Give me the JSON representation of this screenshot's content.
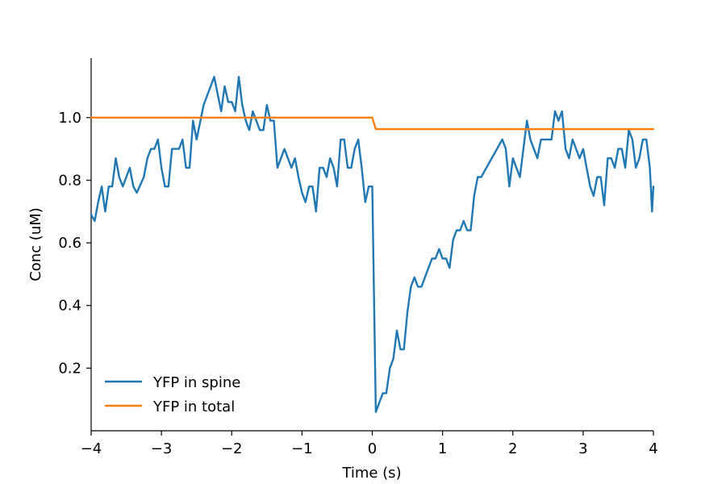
{
  "chart_data": {
    "type": "line",
    "xlabel": "Time (s)",
    "ylabel": "Conc (uM)",
    "xlim": [
      -4,
      4
    ],
    "ylim": [
      0.0,
      1.19
    ],
    "x_ticks": [
      -4,
      -3,
      -2,
      -1,
      0,
      1,
      2,
      3,
      4
    ],
    "x_tick_labels": [
      "−4",
      "−3",
      "−2",
      "−1",
      "0",
      "1",
      "2",
      "3",
      "4"
    ],
    "y_ticks": [
      0.2,
      0.4,
      0.6,
      0.8,
      1.0
    ],
    "y_tick_labels": [
      "0.2",
      "0.4",
      "0.6",
      "0.8",
      "1.0"
    ],
    "grid": false,
    "legend_position": "bottom-left",
    "series": [
      {
        "name": "YFP in spine",
        "color": "#1f77b4",
        "points": [
          [
            -4.0,
            0.69
          ],
          [
            -3.95,
            0.67
          ],
          [
            -3.9,
            0.73
          ],
          [
            -3.85,
            0.78
          ],
          [
            -3.8,
            0.7
          ],
          [
            -3.75,
            0.78
          ],
          [
            -3.7,
            0.78
          ],
          [
            -3.65,
            0.87
          ],
          [
            -3.6,
            0.81
          ],
          [
            -3.55,
            0.78
          ],
          [
            -3.45,
            0.84
          ],
          [
            -3.4,
            0.78
          ],
          [
            -3.35,
            0.76
          ],
          [
            -3.25,
            0.81
          ],
          [
            -3.2,
            0.87
          ],
          [
            -3.15,
            0.9
          ],
          [
            -3.1,
            0.9
          ],
          [
            -3.05,
            0.93
          ],
          [
            -3.0,
            0.84
          ],
          [
            -2.95,
            0.78
          ],
          [
            -2.9,
            0.78
          ],
          [
            -2.85,
            0.9
          ],
          [
            -2.75,
            0.9
          ],
          [
            -2.7,
            0.93
          ],
          [
            -2.65,
            0.84
          ],
          [
            -2.6,
            0.84
          ],
          [
            -2.55,
            0.99
          ],
          [
            -2.5,
            0.93
          ],
          [
            -2.4,
            1.04
          ],
          [
            -2.25,
            1.13
          ],
          [
            -2.15,
            1.02
          ],
          [
            -2.1,
            1.1
          ],
          [
            -2.05,
            1.05
          ],
          [
            -2.0,
            1.05
          ],
          [
            -1.95,
            1.02
          ],
          [
            -1.9,
            1.13
          ],
          [
            -1.85,
            1.04
          ],
          [
            -1.8,
            0.99
          ],
          [
            -1.75,
            0.96
          ],
          [
            -1.7,
            1.02
          ],
          [
            -1.6,
            0.96
          ],
          [
            -1.55,
            0.96
          ],
          [
            -1.5,
            1.04
          ],
          [
            -1.45,
            0.99
          ],
          [
            -1.4,
            0.99
          ],
          [
            -1.35,
            0.84
          ],
          [
            -1.25,
            0.9
          ],
          [
            -1.15,
            0.84
          ],
          [
            -1.1,
            0.87
          ],
          [
            -1.05,
            0.81
          ],
          [
            -1.0,
            0.76
          ],
          [
            -0.95,
            0.73
          ],
          [
            -0.9,
            0.78
          ],
          [
            -0.85,
            0.78
          ],
          [
            -0.8,
            0.7
          ],
          [
            -0.75,
            0.84
          ],
          [
            -0.7,
            0.84
          ],
          [
            -0.65,
            0.81
          ],
          [
            -0.6,
            0.87
          ],
          [
            -0.55,
            0.84
          ],
          [
            -0.5,
            0.78
          ],
          [
            -0.45,
            0.93
          ],
          [
            -0.4,
            0.93
          ],
          [
            -0.35,
            0.84
          ],
          [
            -0.3,
            0.84
          ],
          [
            -0.25,
            0.9
          ],
          [
            -0.2,
            0.93
          ],
          [
            -0.15,
            0.84
          ],
          [
            -0.1,
            0.73
          ],
          [
            -0.05,
            0.78
          ],
          [
            0.0,
            0.78
          ],
          [
            0.05,
            0.06
          ],
          [
            0.1,
            0.09
          ],
          [
            0.15,
            0.12
          ],
          [
            0.2,
            0.12
          ],
          [
            0.25,
            0.2
          ],
          [
            0.3,
            0.23
          ],
          [
            0.35,
            0.32
          ],
          [
            0.4,
            0.26
          ],
          [
            0.45,
            0.26
          ],
          [
            0.5,
            0.38
          ],
          [
            0.55,
            0.46
          ],
          [
            0.6,
            0.49
          ],
          [
            0.65,
            0.46
          ],
          [
            0.7,
            0.46
          ],
          [
            0.75,
            0.49
          ],
          [
            0.8,
            0.52
          ],
          [
            0.85,
            0.55
          ],
          [
            0.9,
            0.55
          ],
          [
            0.95,
            0.58
          ],
          [
            1.0,
            0.55
          ],
          [
            1.05,
            0.55
          ],
          [
            1.1,
            0.52
          ],
          [
            1.15,
            0.61
          ],
          [
            1.2,
            0.64
          ],
          [
            1.25,
            0.64
          ],
          [
            1.3,
            0.67
          ],
          [
            1.35,
            0.64
          ],
          [
            1.4,
            0.64
          ],
          [
            1.45,
            0.75
          ],
          [
            1.5,
            0.81
          ],
          [
            1.55,
            0.81
          ],
          [
            1.85,
            0.93
          ],
          [
            1.9,
            0.9
          ],
          [
            1.95,
            0.78
          ],
          [
            2.0,
            0.87
          ],
          [
            2.1,
            0.81
          ],
          [
            2.2,
            0.99
          ],
          [
            2.25,
            0.93
          ],
          [
            2.35,
            0.87
          ],
          [
            2.4,
            0.93
          ],
          [
            2.55,
            0.93
          ],
          [
            2.6,
            1.02
          ],
          [
            2.65,
            0.99
          ],
          [
            2.7,
            1.02
          ],
          [
            2.75,
            0.9
          ],
          [
            2.8,
            0.87
          ],
          [
            2.85,
            0.93
          ],
          [
            2.95,
            0.87
          ],
          [
            3.0,
            0.9
          ],
          [
            3.05,
            0.84
          ],
          [
            3.1,
            0.78
          ],
          [
            3.15,
            0.75
          ],
          [
            3.2,
            0.81
          ],
          [
            3.25,
            0.81
          ],
          [
            3.3,
            0.72
          ],
          [
            3.35,
            0.87
          ],
          [
            3.4,
            0.87
          ],
          [
            3.45,
            0.84
          ],
          [
            3.5,
            0.9
          ],
          [
            3.55,
            0.9
          ],
          [
            3.6,
            0.84
          ],
          [
            3.65,
            0.96
          ],
          [
            3.7,
            0.93
          ],
          [
            3.75,
            0.84
          ],
          [
            3.8,
            0.87
          ],
          [
            3.85,
            0.93
          ],
          [
            3.9,
            0.93
          ],
          [
            3.95,
            0.84
          ],
          [
            3.98,
            0.7
          ],
          [
            4.0,
            0.78
          ],
          [
            4.05,
            0.78
          ]
        ]
      },
      {
        "name": "YFP in total",
        "color": "#ff7f0e",
        "points": [
          [
            -4.0,
            1.0
          ],
          [
            0.0,
            1.0
          ],
          [
            0.05,
            0.963
          ],
          [
            4.0,
            0.963
          ]
        ]
      }
    ]
  }
}
